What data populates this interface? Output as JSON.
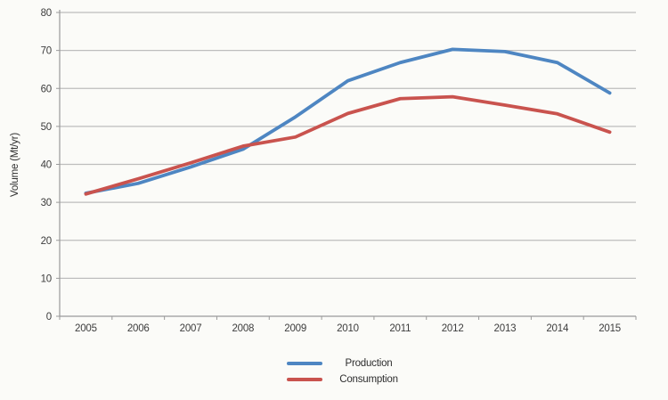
{
  "chart_data": {
    "type": "line",
    "title": "",
    "xlabel": "",
    "ylabel": "Volume (Mt/yr)",
    "categories": [
      "2005",
      "2006",
      "2007",
      "2008",
      "2009",
      "2010",
      "2011",
      "2012",
      "2013",
      "2014",
      "2015"
    ],
    "y_ticks": [
      0,
      10,
      20,
      30,
      40,
      50,
      60,
      70,
      80
    ],
    "ylim": [
      0,
      80
    ],
    "grid": "horizontal",
    "legend_position": "bottom-center",
    "series": [
      {
        "name": "Production",
        "color": "#4e86c2",
        "values": [
          32.4,
          35.0,
          39.3,
          44.0,
          52.5,
          62.0,
          66.8,
          70.3,
          69.7,
          66.8,
          58.8
        ]
      },
      {
        "name": "Consumption",
        "color": "#c9534e",
        "values": [
          32.2,
          36.2,
          40.4,
          44.8,
          47.2,
          53.4,
          57.3,
          57.8,
          55.6,
          53.3,
          48.5
        ]
      }
    ],
    "colors": {
      "axis": "#9a9a9a",
      "gridline": "#bdbdbd",
      "tick_label": "#3d3d3d"
    }
  }
}
